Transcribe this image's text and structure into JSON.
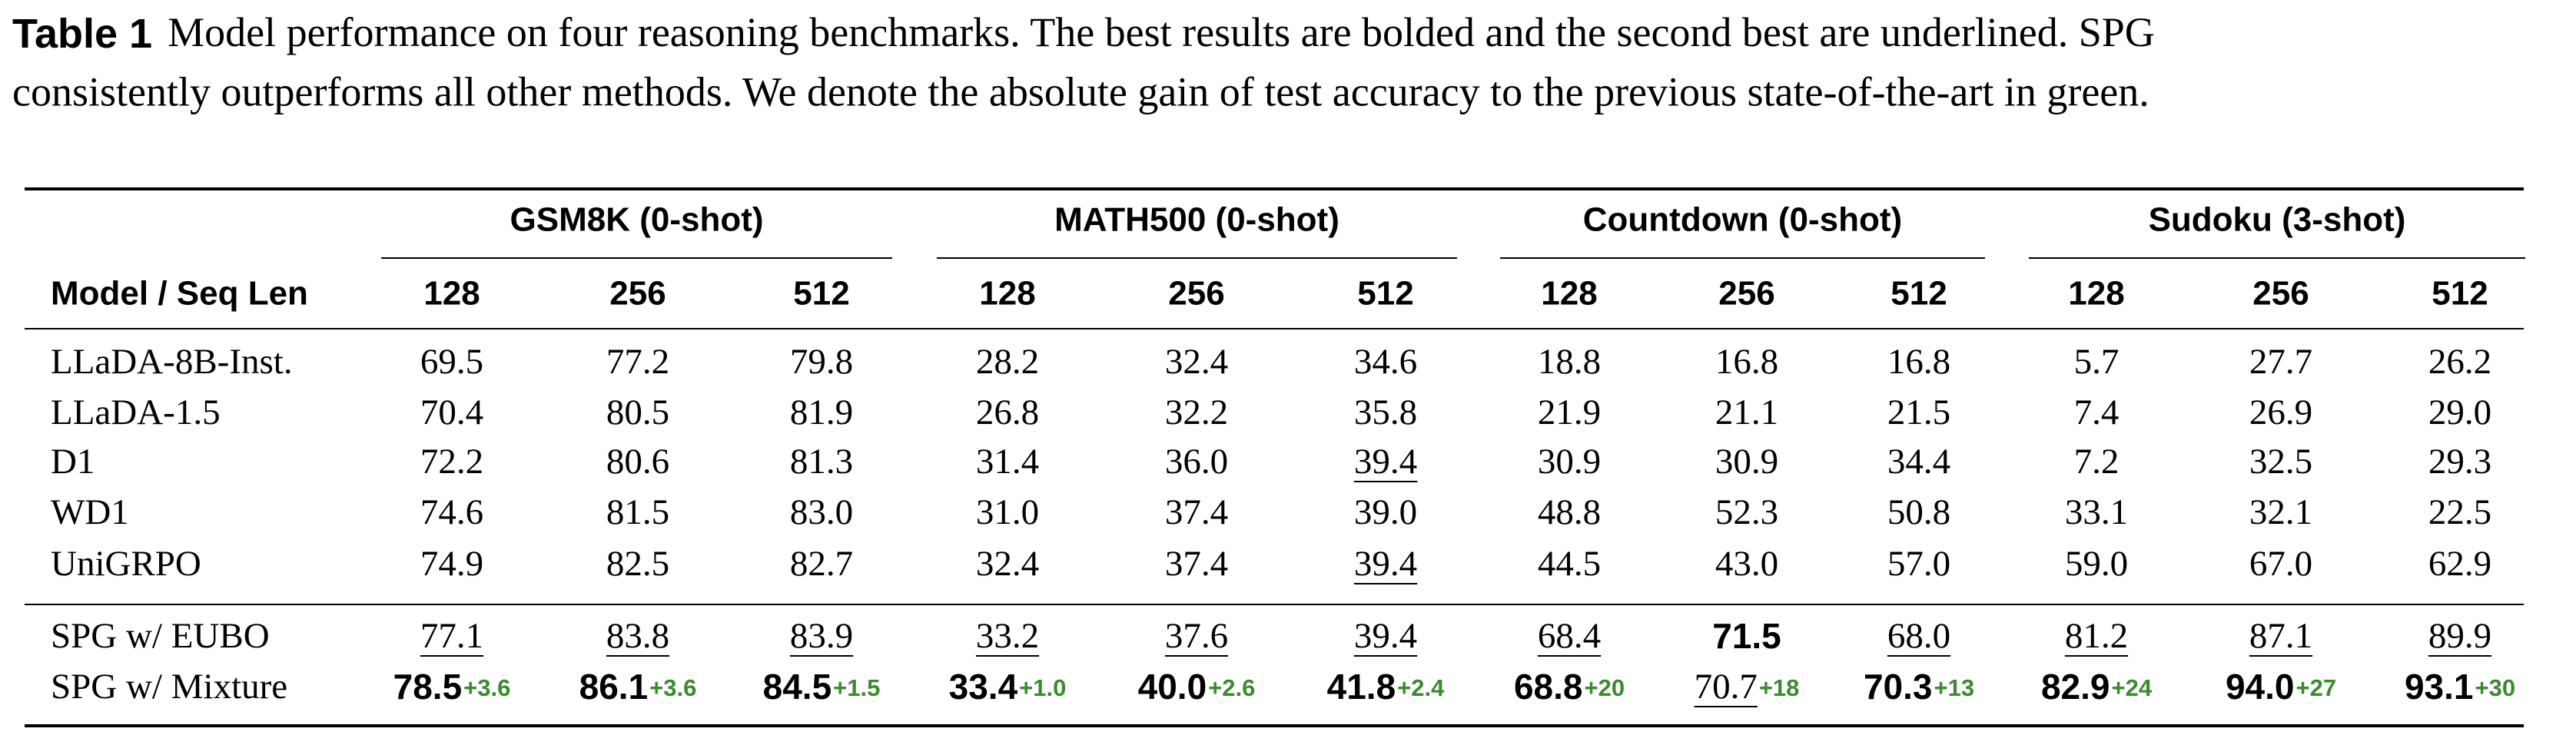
{
  "caption": {
    "label": "Table 1",
    "lines": [
      "Model performance on four reasoning benchmarks. The best results are bolded and the second best are underlined. SPG",
      "consistently outperforms all other methods. We denote the absolute gain of test accuracy to the previous state-of-the-art in green."
    ]
  },
  "table": {
    "row_header": "Model / Seq Len",
    "groups": [
      "GSM8K (0-shot)",
      "MATH500 (0-shot)",
      "Countdown (0-shot)",
      "Sudoku (3-shot)"
    ],
    "columns": [
      "128",
      "256",
      "512",
      "128",
      "256",
      "512",
      "128",
      "256",
      "512",
      "128",
      "256",
      "512"
    ],
    "sections": [
      {
        "rows": [
          {
            "model": "LLaDA-8B-Inst.",
            "cells": [
              {
                "value": "69.5"
              },
              {
                "value": "77.2"
              },
              {
                "value": "79.8"
              },
              {
                "value": "28.2"
              },
              {
                "value": "32.4"
              },
              {
                "value": "34.6"
              },
              {
                "value": "18.8"
              },
              {
                "value": "16.8"
              },
              {
                "value": "16.8"
              },
              {
                "value": "5.7"
              },
              {
                "value": "27.7"
              },
              {
                "value": "26.2"
              }
            ]
          },
          {
            "model": "LLaDA-1.5",
            "cells": [
              {
                "value": "70.4"
              },
              {
                "value": "80.5"
              },
              {
                "value": "81.9"
              },
              {
                "value": "26.8"
              },
              {
                "value": "32.2"
              },
              {
                "value": "35.8"
              },
              {
                "value": "21.9"
              },
              {
                "value": "21.1"
              },
              {
                "value": "21.5"
              },
              {
                "value": "7.4"
              },
              {
                "value": "26.9"
              },
              {
                "value": "29.0"
              }
            ]
          },
          {
            "model": "D1",
            "cells": [
              {
                "value": "72.2"
              },
              {
                "value": "80.6"
              },
              {
                "value": "81.3"
              },
              {
                "value": "31.4"
              },
              {
                "value": "36.0"
              },
              {
                "value": "39.4",
                "style": "underline"
              },
              {
                "value": "30.9"
              },
              {
                "value": "30.9"
              },
              {
                "value": "34.4"
              },
              {
                "value": "7.2"
              },
              {
                "value": "32.5"
              },
              {
                "value": "29.3"
              }
            ]
          },
          {
            "model": "WD1",
            "cells": [
              {
                "value": "74.6"
              },
              {
                "value": "81.5"
              },
              {
                "value": "83.0"
              },
              {
                "value": "31.0"
              },
              {
                "value": "37.4"
              },
              {
                "value": "39.0"
              },
              {
                "value": "48.8"
              },
              {
                "value": "52.3"
              },
              {
                "value": "50.8"
              },
              {
                "value": "33.1"
              },
              {
                "value": "32.1"
              },
              {
                "value": "22.5"
              }
            ]
          },
          {
            "model": "UniGRPO",
            "cells": [
              {
                "value": "74.9"
              },
              {
                "value": "82.5"
              },
              {
                "value": "82.7"
              },
              {
                "value": "32.4"
              },
              {
                "value": "37.4"
              },
              {
                "value": "39.4",
                "style": "underline"
              },
              {
                "value": "44.5"
              },
              {
                "value": "43.0"
              },
              {
                "value": "57.0"
              },
              {
                "value": "59.0"
              },
              {
                "value": "67.0"
              },
              {
                "value": "62.9"
              }
            ]
          }
        ]
      },
      {
        "rows": [
          {
            "model": "SPG w/ EUBO",
            "cells": [
              {
                "value": "77.1",
                "style": "underline"
              },
              {
                "value": "83.8",
                "style": "underline"
              },
              {
                "value": "83.9",
                "style": "underline"
              },
              {
                "value": "33.2",
                "style": "underline"
              },
              {
                "value": "37.6",
                "style": "underline"
              },
              {
                "value": "39.4",
                "style": "underline"
              },
              {
                "value": "68.4",
                "style": "underline"
              },
              {
                "value": "71.5",
                "style": "bold"
              },
              {
                "value": "68.0",
                "style": "underline"
              },
              {
                "value": "81.2",
                "style": "underline"
              },
              {
                "value": "87.1",
                "style": "underline"
              },
              {
                "value": "89.9",
                "style": "underline"
              }
            ]
          },
          {
            "model": "SPG w/ Mixture",
            "cells": [
              {
                "value": "78.5",
                "style": "bold",
                "gain": "+3.6"
              },
              {
                "value": "86.1",
                "style": "bold",
                "gain": "+3.6"
              },
              {
                "value": "84.5",
                "style": "bold",
                "gain": "+1.5"
              },
              {
                "value": "33.4",
                "style": "bold",
                "gain": "+1.0"
              },
              {
                "value": "40.0",
                "style": "bold",
                "gain": "+2.6"
              },
              {
                "value": "41.8",
                "style": "bold",
                "gain": "+2.4"
              },
              {
                "value": "68.8",
                "style": "bold",
                "gain": "+20"
              },
              {
                "value": "70.7",
                "style": "underline",
                "gain": "+18"
              },
              {
                "value": "70.3",
                "style": "bold",
                "gain": "+13"
              },
              {
                "value": "82.9",
                "style": "bold",
                "gain": "+24"
              },
              {
                "value": "94.0",
                "style": "bold",
                "gain": "+27"
              },
              {
                "value": "93.1",
                "style": "bold",
                "gain": "+30"
              }
            ]
          }
        ]
      }
    ]
  }
}
